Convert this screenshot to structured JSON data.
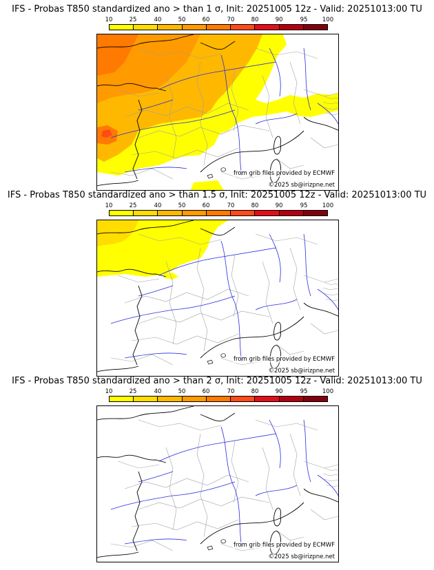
{
  "panels": [
    {
      "title": "IFS - Probas T850  standardized ano > than 1 σ, Init: 20251005 12z - Valid: 20251013:00 TU",
      "threshold_sigma": 1
    },
    {
      "title": "IFS - Probas T850  standardized ano > than 1.5 σ, Init: 20251005 12z - Valid: 20251013:00 TU",
      "threshold_sigma": 1.5
    },
    {
      "title": "IFS - Probas T850  standardized ano > than 2 σ, Init: 20251005 12z - Valid: 20251013:00 TU",
      "threshold_sigma": 2
    }
  ],
  "colorbar": {
    "ticks": [
      "10",
      "25",
      "40",
      "50",
      "60",
      "70",
      "80",
      "90",
      "95",
      "100"
    ],
    "colors": [
      "#ffff00",
      "#ffdd00",
      "#ffb800",
      "#ff9a00",
      "#ff7a00",
      "#ff4a1a",
      "#e0101a",
      "#b30010",
      "#800010"
    ]
  },
  "credits": {
    "source": "from grib files provided by ECMWF",
    "copyright": "©2025 sb@irizpne.net"
  },
  "colors": {
    "coast": "#000000",
    "rivers": "#1a1adc",
    "borders": "#9a9a9a"
  }
}
